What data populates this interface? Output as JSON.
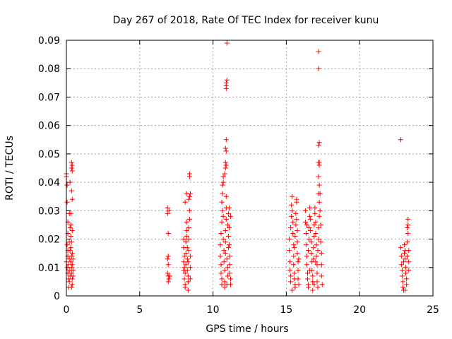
{
  "chart_data": {
    "type": "scatter",
    "title": "Day 267 of 2018, Rate Of TEC Index for receiver kunu",
    "xlabel": "GPS time / hours",
    "ylabel": "ROTI / TECUs",
    "xlim": [
      0,
      25
    ],
    "ylim": [
      0,
      0.09
    ],
    "x_ticks": [
      0,
      5,
      10,
      15,
      20,
      25
    ],
    "x_tick_labels": [
      "0",
      "5",
      "10",
      "15",
      "20",
      "25"
    ],
    "y_ticks": [
      0,
      0.01,
      0.02,
      0.03,
      0.04,
      0.05,
      0.06,
      0.07,
      0.08,
      0.09
    ],
    "y_tick_labels": [
      "0",
      "0.01",
      "0.02",
      "0.03",
      "0.04",
      "0.05",
      "0.06",
      "0.07",
      "0.08",
      "0.09"
    ],
    "grid": true,
    "marker": "+",
    "series": [
      {
        "name": "ROTI",
        "color": "#ff0000",
        "points": [
          [
            0.0,
            0.043
          ],
          [
            0.0,
            0.042
          ],
          [
            0.05,
            0.039
          ],
          [
            0.05,
            0.033
          ],
          [
            0.1,
            0.026
          ],
          [
            0.1,
            0.022
          ],
          [
            0.05,
            0.018
          ],
          [
            0.1,
            0.014
          ],
          [
            0.0,
            0.012
          ],
          [
            0.05,
            0.01
          ],
          [
            0.1,
            0.008
          ],
          [
            0.15,
            0.006
          ],
          [
            0.2,
            0.005
          ],
          [
            0.2,
            0.009
          ],
          [
            0.15,
            0.011
          ],
          [
            0.2,
            0.013
          ],
          [
            0.25,
            0.016
          ],
          [
            0.2,
            0.019
          ],
          [
            0.25,
            0.024
          ],
          [
            0.2,
            0.029
          ],
          [
            0.3,
            0.029
          ],
          [
            0.3,
            0.025
          ],
          [
            0.3,
            0.021
          ],
          [
            0.3,
            0.017
          ],
          [
            0.35,
            0.014
          ],
          [
            0.3,
            0.012
          ],
          [
            0.35,
            0.01
          ],
          [
            0.35,
            0.008
          ],
          [
            0.4,
            0.006
          ],
          [
            0.4,
            0.004
          ],
          [
            0.35,
            0.003
          ],
          [
            0.4,
            0.011
          ],
          [
            0.4,
            0.015
          ],
          [
            0.35,
            0.019
          ],
          [
            0.4,
            0.023
          ],
          [
            0.25,
            0.04
          ],
          [
            0.35,
            0.047
          ],
          [
            0.4,
            0.046
          ],
          [
            0.35,
            0.045
          ],
          [
            0.4,
            0.044
          ],
          [
            0.35,
            0.037
          ],
          [
            0.4,
            0.034
          ],
          [
            0.45,
            0.009
          ],
          [
            0.45,
            0.013
          ],
          [
            0.45,
            0.007
          ],
          [
            0.15,
            0.003
          ],
          [
            0.1,
            0.016
          ],
          [
            0.25,
            0.007
          ],
          [
            6.9,
            0.031
          ],
          [
            6.9,
            0.029
          ],
          [
            6.95,
            0.022
          ],
          [
            6.95,
            0.014
          ],
          [
            6.9,
            0.013
          ],
          [
            6.95,
            0.011
          ],
          [
            6.9,
            0.008
          ],
          [
            6.95,
            0.007
          ],
          [
            7.0,
            0.006
          ],
          [
            6.95,
            0.005
          ],
          [
            7.0,
            0.03
          ],
          [
            7.05,
            0.007
          ],
          [
            8.0,
            0.02
          ],
          [
            8.0,
            0.017
          ],
          [
            8.05,
            0.014
          ],
          [
            8.0,
            0.012
          ],
          [
            8.05,
            0.01
          ],
          [
            8.1,
            0.008
          ],
          [
            8.05,
            0.006
          ],
          [
            8.1,
            0.004
          ],
          [
            8.1,
            0.003
          ],
          [
            8.15,
            0.011
          ],
          [
            8.15,
            0.015
          ],
          [
            8.15,
            0.019
          ],
          [
            8.2,
            0.023
          ],
          [
            8.2,
            0.026
          ],
          [
            8.2,
            0.021
          ],
          [
            8.25,
            0.017
          ],
          [
            8.25,
            0.013
          ],
          [
            8.25,
            0.009
          ],
          [
            8.3,
            0.007
          ],
          [
            8.3,
            0.005
          ],
          [
            8.3,
            0.012
          ],
          [
            8.35,
            0.016
          ],
          [
            8.35,
            0.02
          ],
          [
            8.35,
            0.024
          ],
          [
            8.4,
            0.027
          ],
          [
            8.4,
            0.03
          ],
          [
            8.35,
            0.034
          ],
          [
            8.4,
            0.035
          ],
          [
            8.45,
            0.036
          ],
          [
            8.4,
            0.043
          ],
          [
            8.4,
            0.042
          ],
          [
            8.45,
            0.01
          ],
          [
            8.45,
            0.006
          ],
          [
            8.45,
            0.014
          ],
          [
            8.1,
            0.033
          ],
          [
            8.2,
            0.036
          ],
          [
            8.3,
            0.002
          ],
          [
            8.0,
            0.009
          ],
          [
            10.5,
            0.018
          ],
          [
            10.5,
            0.014
          ],
          [
            10.55,
            0.011
          ],
          [
            10.55,
            0.008
          ],
          [
            10.6,
            0.006
          ],
          [
            10.6,
            0.004
          ],
          [
            10.55,
            0.022
          ],
          [
            10.6,
            0.026
          ],
          [
            10.65,
            0.03
          ],
          [
            10.6,
            0.033
          ],
          [
            10.65,
            0.039
          ],
          [
            10.7,
            0.04
          ],
          [
            10.7,
            0.042
          ],
          [
            10.65,
            0.036
          ],
          [
            10.7,
            0.028
          ],
          [
            10.7,
            0.02
          ],
          [
            10.75,
            0.016
          ],
          [
            10.75,
            0.012
          ],
          [
            10.8,
            0.009
          ],
          [
            10.8,
            0.005
          ],
          [
            10.8,
            0.003
          ],
          [
            10.85,
            0.015
          ],
          [
            10.85,
            0.019
          ],
          [
            10.85,
            0.023
          ],
          [
            10.9,
            0.027
          ],
          [
            10.9,
            0.031
          ],
          [
            10.9,
            0.035
          ],
          [
            10.85,
            0.045
          ],
          [
            10.9,
            0.046
          ],
          [
            10.85,
            0.047
          ],
          [
            10.9,
            0.051
          ],
          [
            10.85,
            0.052
          ],
          [
            10.9,
            0.055
          ],
          [
            10.9,
            0.073
          ],
          [
            10.9,
            0.074
          ],
          [
            10.95,
            0.076
          ],
          [
            10.9,
            0.075
          ],
          [
            10.95,
            0.089
          ],
          [
            10.95,
            0.013
          ],
          [
            11.0,
            0.01
          ],
          [
            11.0,
            0.007
          ],
          [
            11.05,
            0.017
          ],
          [
            11.05,
            0.021
          ],
          [
            11.0,
            0.025
          ],
          [
            11.05,
            0.029
          ],
          [
            11.1,
            0.031
          ],
          [
            11.1,
            0.024
          ],
          [
            11.1,
            0.018
          ],
          [
            11.15,
            0.014
          ],
          [
            11.15,
            0.011
          ],
          [
            11.15,
            0.008
          ],
          [
            11.2,
            0.006
          ],
          [
            11.2,
            0.004
          ],
          [
            10.8,
            0.043
          ],
          [
            10.95,
            0.004
          ],
          [
            11.2,
            0.028
          ],
          [
            15.2,
            0.02
          ],
          [
            15.2,
            0.016
          ],
          [
            15.25,
            0.012
          ],
          [
            15.25,
            0.009
          ],
          [
            15.3,
            0.007
          ],
          [
            15.3,
            0.005
          ],
          [
            15.3,
            0.024
          ],
          [
            15.35,
            0.028
          ],
          [
            15.35,
            0.032
          ],
          [
            15.4,
            0.035
          ],
          [
            15.4,
            0.03
          ],
          [
            15.45,
            0.026
          ],
          [
            15.45,
            0.022
          ],
          [
            15.5,
            0.018
          ],
          [
            15.5,
            0.014
          ],
          [
            15.5,
            0.011
          ],
          [
            15.55,
            0.008
          ],
          [
            15.55,
            0.006
          ],
          [
            15.6,
            0.004
          ],
          [
            15.6,
            0.003
          ],
          [
            15.55,
            0.017
          ],
          [
            15.6,
            0.021
          ],
          [
            15.65,
            0.025
          ],
          [
            15.65,
            0.029
          ],
          [
            15.7,
            0.033
          ],
          [
            15.7,
            0.034
          ],
          [
            15.7,
            0.027
          ],
          [
            15.75,
            0.023
          ],
          [
            15.75,
            0.019
          ],
          [
            15.75,
            0.015
          ],
          [
            15.8,
            0.012
          ],
          [
            15.8,
            0.009
          ],
          [
            15.8,
            0.006
          ],
          [
            15.85,
            0.004
          ],
          [
            15.85,
            0.013
          ],
          [
            15.4,
            0.002
          ],
          [
            16.3,
            0.03
          ],
          [
            16.3,
            0.026
          ],
          [
            16.35,
            0.022
          ],
          [
            16.35,
            0.018
          ],
          [
            16.4,
            0.014
          ],
          [
            16.4,
            0.011
          ],
          [
            16.45,
            0.008
          ],
          [
            16.45,
            0.006
          ],
          [
            16.5,
            0.004
          ],
          [
            16.5,
            0.003
          ],
          [
            16.5,
            0.016
          ],
          [
            16.55,
            0.02
          ],
          [
            16.55,
            0.024
          ],
          [
            16.6,
            0.028
          ],
          [
            16.6,
            0.031
          ],
          [
            16.65,
            0.027
          ],
          [
            16.65,
            0.023
          ],
          [
            16.7,
            0.019
          ],
          [
            16.7,
            0.015
          ],
          [
            16.75,
            0.012
          ],
          [
            16.75,
            0.009
          ],
          [
            16.8,
            0.007
          ],
          [
            16.8,
            0.005
          ],
          [
            16.8,
            0.002
          ],
          [
            16.85,
            0.013
          ],
          [
            16.85,
            0.017
          ],
          [
            16.9,
            0.021
          ],
          [
            16.9,
            0.025
          ],
          [
            16.95,
            0.029
          ],
          [
            16.95,
            0.031
          ],
          [
            17.0,
            0.026
          ],
          [
            17.0,
            0.022
          ],
          [
            17.05,
            0.018
          ],
          [
            17.05,
            0.014
          ],
          [
            17.1,
            0.011
          ],
          [
            17.1,
            0.008
          ],
          [
            17.1,
            0.005
          ],
          [
            17.15,
            0.003
          ],
          [
            17.15,
            0.016
          ],
          [
            17.2,
            0.02
          ],
          [
            17.2,
            0.024
          ],
          [
            17.25,
            0.028
          ],
          [
            17.25,
            0.033
          ],
          [
            17.2,
            0.036
          ],
          [
            17.25,
            0.039
          ],
          [
            17.2,
            0.042
          ],
          [
            17.25,
            0.046
          ],
          [
            17.2,
            0.047
          ],
          [
            17.25,
            0.047
          ],
          [
            17.2,
            0.053
          ],
          [
            17.25,
            0.054
          ],
          [
            17.2,
            0.086
          ],
          [
            17.2,
            0.08
          ],
          [
            17.3,
            0.036
          ],
          [
            17.3,
            0.03
          ],
          [
            17.35,
            0.025
          ],
          [
            17.35,
            0.019
          ],
          [
            17.4,
            0.015
          ],
          [
            17.4,
            0.011
          ],
          [
            17.4,
            0.007
          ],
          [
            17.45,
            0.004
          ],
          [
            16.6,
            0.009
          ],
          [
            16.9,
            0.004
          ],
          [
            17.0,
            0.012
          ],
          [
            16.4,
            0.025
          ],
          [
            22.8,
            0.055
          ],
          [
            22.8,
            0.017
          ],
          [
            22.85,
            0.014
          ],
          [
            22.85,
            0.011
          ],
          [
            22.9,
            0.009
          ],
          [
            22.9,
            0.007
          ],
          [
            22.95,
            0.005
          ],
          [
            22.95,
            0.003
          ],
          [
            23.0,
            0.002
          ],
          [
            23.0,
            0.012
          ],
          [
            23.05,
            0.015
          ],
          [
            23.05,
            0.018
          ],
          [
            23.1,
            0.016
          ],
          [
            23.1,
            0.013
          ],
          [
            23.15,
            0.01
          ],
          [
            23.15,
            0.008
          ],
          [
            23.2,
            0.006
          ],
          [
            23.2,
            0.004
          ],
          [
            23.25,
            0.014
          ],
          [
            23.25,
            0.019
          ],
          [
            23.3,
            0.022
          ],
          [
            23.25,
            0.024
          ],
          [
            23.3,
            0.027
          ],
          [
            23.3,
            0.025
          ],
          [
            23.35,
            0.012
          ],
          [
            23.35,
            0.009
          ],
          [
            23.35,
            0.016
          ],
          [
            23.1,
            0.002
          ]
        ]
      }
    ]
  }
}
